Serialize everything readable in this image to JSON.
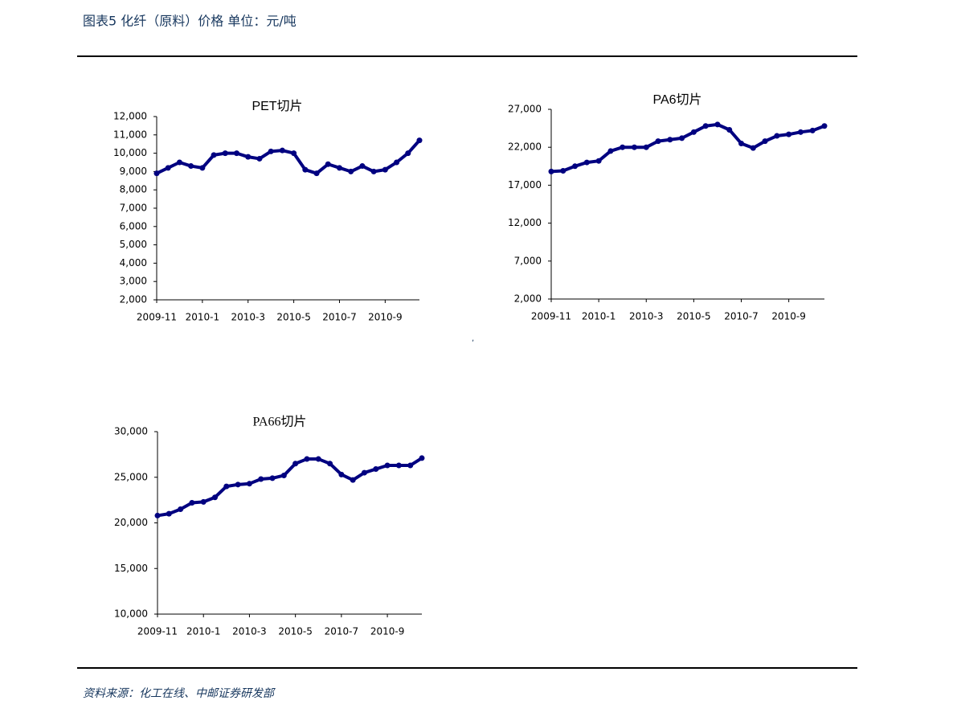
{
  "header": {
    "title": "图表5 化纤（原料）价格 单位：元/吨"
  },
  "stray_mark": ",",
  "source": "资料来源：化工在线、中邮证券研发部",
  "chart_data": [
    {
      "type": "line",
      "title": "PET切片",
      "categories": [
        "2009-11",
        null,
        null,
        null,
        "2010-1",
        null,
        null,
        null,
        "2010-3",
        null,
        null,
        null,
        "2010-5",
        null,
        null,
        null,
        "2010-7",
        null,
        null,
        null,
        "2010-9",
        null,
        null,
        null
      ],
      "series": [
        {
          "name": "PET切片",
          "color": "#000080",
          "values": [
            8900,
            9200,
            9500,
            9300,
            9200,
            9900,
            10000,
            10000,
            9800,
            9700,
            10100,
            10150,
            10000,
            9100,
            8900,
            9400,
            9200,
            9000,
            9300,
            9000,
            9100,
            9500,
            10000,
            10700
          ]
        }
      ],
      "ylim": [
        2000,
        12000
      ],
      "yticks": [
        {
          "value": 2000,
          "label": "2,000"
        },
        {
          "value": 3000,
          "label": "3,000"
        },
        {
          "value": 4000,
          "label": "4,000"
        },
        {
          "value": 5000,
          "label": "5,000"
        },
        {
          "value": 6000,
          "label": "6,000"
        },
        {
          "value": 7000,
          "label": "7,000"
        },
        {
          "value": 8000,
          "label": "8,000"
        },
        {
          "value": 9000,
          "label": "9,000"
        },
        {
          "value": 10000,
          "label": "10,000"
        },
        {
          "value": 11000,
          "label": "11,000"
        },
        {
          "value": 12000,
          "label": "12,000"
        }
      ]
    },
    {
      "type": "line",
      "title": "PA6切片",
      "categories": [
        "2009-11",
        null,
        null,
        null,
        "2010-1",
        null,
        null,
        null,
        "2010-3",
        null,
        null,
        null,
        "2010-5",
        null,
        null,
        null,
        "2010-7",
        null,
        null,
        null,
        "2010-9",
        null,
        null,
        null
      ],
      "series": [
        {
          "name": "PA6切片",
          "color": "#000080",
          "values": [
            18800,
            18900,
            19500,
            20000,
            20200,
            21500,
            22000,
            22000,
            22000,
            22800,
            23000,
            23200,
            24000,
            24800,
            25000,
            24300,
            22500,
            21900,
            22800,
            23500,
            23700,
            24000,
            24200,
            24800
          ]
        }
      ],
      "ylim": [
        2000,
        27000
      ],
      "yticks": [
        {
          "value": 2000,
          "label": "2,000"
        },
        {
          "value": 7000,
          "label": "7,000"
        },
        {
          "value": 12000,
          "label": "12,000"
        },
        {
          "value": 17000,
          "label": "17,000"
        },
        {
          "value": 22000,
          "label": "22,000"
        },
        {
          "value": 27000,
          "label": "27,000"
        }
      ]
    },
    {
      "type": "line",
      "title": "PA66切片",
      "categories": [
        "2009-11",
        null,
        null,
        null,
        "2010-1",
        null,
        null,
        null,
        "2010-3",
        null,
        null,
        null,
        "2010-5",
        null,
        null,
        null,
        "2010-7",
        null,
        null,
        null,
        "2010-9",
        null,
        null,
        null
      ],
      "series": [
        {
          "name": "PA66切片",
          "color": "#000080",
          "values": [
            20800,
            21000,
            21500,
            22200,
            22300,
            22800,
            24000,
            24200,
            24300,
            24800,
            24900,
            25200,
            26500,
            27000,
            27000,
            26500,
            25300,
            24700,
            25500,
            25900,
            26300,
            26300,
            26300,
            27100
          ]
        }
      ],
      "ylim": [
        10000,
        30000
      ],
      "yticks": [
        {
          "value": 10000,
          "label": "10,000"
        },
        {
          "value": 15000,
          "label": "15,000"
        },
        {
          "value": 20000,
          "label": "20,000"
        },
        {
          "value": 25000,
          "label": "25,000"
        },
        {
          "value": 30000,
          "label": "30,000"
        }
      ]
    }
  ]
}
